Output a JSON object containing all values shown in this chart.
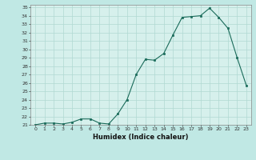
{
  "x": [
    0,
    1,
    2,
    3,
    4,
    5,
    6,
    7,
    8,
    9,
    10,
    11,
    12,
    13,
    14,
    15,
    16,
    17,
    18,
    19,
    20,
    21,
    22,
    23
  ],
  "y": [
    21.0,
    21.2,
    21.2,
    21.1,
    21.3,
    21.7,
    21.7,
    21.2,
    21.1,
    22.3,
    24.0,
    27.0,
    28.8,
    28.7,
    29.5,
    31.7,
    33.8,
    33.9,
    34.0,
    34.9,
    33.8,
    32.5,
    29.0,
    25.7
  ],
  "xlabel": "Humidex (Indice chaleur)",
  "ylim": [
    21,
    35
  ],
  "xlim": [
    -0.5,
    23.5
  ],
  "yticks": [
    21,
    22,
    23,
    24,
    25,
    26,
    27,
    28,
    29,
    30,
    31,
    32,
    33,
    34,
    35
  ],
  "xticks": [
    0,
    1,
    2,
    3,
    4,
    5,
    6,
    7,
    8,
    9,
    10,
    11,
    12,
    13,
    14,
    15,
    16,
    17,
    18,
    19,
    20,
    21,
    22,
    23
  ],
  "line_color": "#1a6b5a",
  "marker_color": "#1a6b5a",
  "bg_color": "#d6f0ec",
  "grid_color": "#b0d8d2",
  "fig_bg": "#c0e8e4"
}
